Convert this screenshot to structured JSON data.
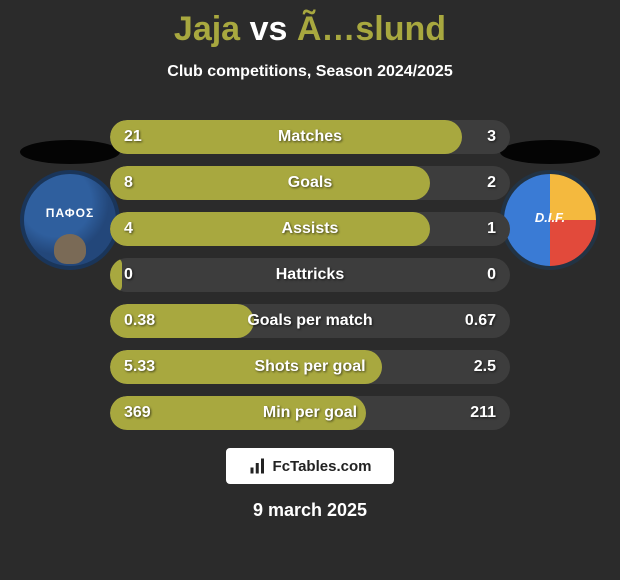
{
  "title": {
    "left": "Jaja",
    "vs": "vs",
    "right": "Ã…slund"
  },
  "subtitle": "Club competitions, Season 2024/2025",
  "date": "9 march 2025",
  "logo_text": "FcTables.com",
  "crests": {
    "left": {
      "text": "ΠΑΦΟΣ"
    },
    "right": {
      "text": "D.I.F."
    }
  },
  "colors": {
    "bar_fill": "#a8a83f",
    "bar_bg": "#3d3d3d",
    "page_bg": "#2b2b2b"
  },
  "rows": [
    {
      "label": "Matches",
      "left": "21",
      "right": "3",
      "fill_pct": 88
    },
    {
      "label": "Goals",
      "left": "8",
      "right": "2",
      "fill_pct": 80
    },
    {
      "label": "Assists",
      "left": "4",
      "right": "1",
      "fill_pct": 80
    },
    {
      "label": "Hattricks",
      "left": "0",
      "right": "0",
      "fill_pct": 3
    },
    {
      "label": "Goals per match",
      "left": "0.38",
      "right": "0.67",
      "fill_pct": 36
    },
    {
      "label": "Shots per goal",
      "left": "5.33",
      "right": "2.5",
      "fill_pct": 68
    },
    {
      "label": "Min per goal",
      "left": "369",
      "right": "211",
      "fill_pct": 64
    }
  ]
}
